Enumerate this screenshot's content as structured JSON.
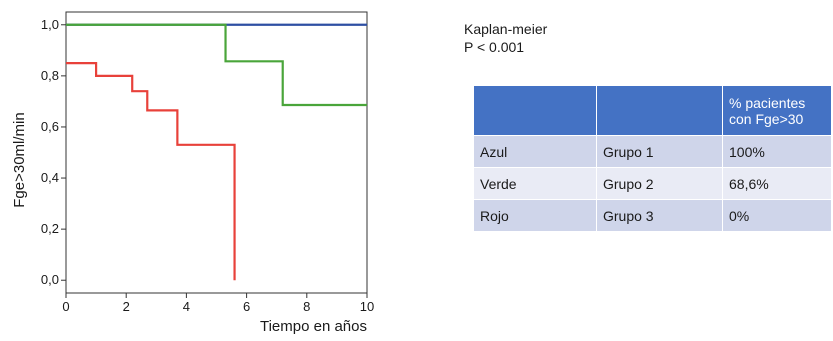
{
  "chart_data": {
    "type": "line",
    "subtype": "kaplan-meier step plot",
    "xlabel": "Tiempo en años",
    "ylabel": "Fge>30ml/min",
    "xlim": [
      0,
      10
    ],
    "ylim": [
      -0.05,
      1.05
    ],
    "xticks": [
      "0",
      "2",
      "4",
      "6",
      "8",
      "10"
    ],
    "xtick_values": [
      0,
      2,
      4,
      6,
      8,
      10
    ],
    "yticks": [
      "0,0",
      "0,2",
      "0,4",
      "0,6",
      "0,8",
      "1,0"
    ],
    "ytick_values": [
      0,
      0.2,
      0.4,
      0.6,
      0.8,
      1.0
    ],
    "grid": false,
    "series": [
      {
        "color": "#2e4fa3",
        "x": [
          0,
          10
        ],
        "y": [
          1.0,
          1.0
        ]
      },
      {
        "color": "#4aa53a",
        "x": [
          0,
          5.3,
          7.2,
          10
        ],
        "y": [
          1.0,
          0.857,
          0.686,
          0.686
        ]
      },
      {
        "color": "#e8413a",
        "x": [
          0,
          1.0,
          2.2,
          2.7,
          3.7,
          5.6
        ],
        "y": [
          0.85,
          0.8,
          0.74,
          0.665,
          0.53,
          0.0
        ],
        "end_x": 5.6
      }
    ]
  },
  "notes": {
    "line1": "Kaplan-meier",
    "line2": "P < 0.001"
  },
  "table": {
    "headers": [
      "",
      "",
      "% pacientes con Fge>30"
    ],
    "rows": [
      [
        "Azul",
        "Grupo 1",
        "100%"
      ],
      [
        "Verde",
        "Grupo 2",
        "68,6%"
      ],
      [
        "Rojo",
        "Grupo 3",
        "0%"
      ]
    ]
  }
}
